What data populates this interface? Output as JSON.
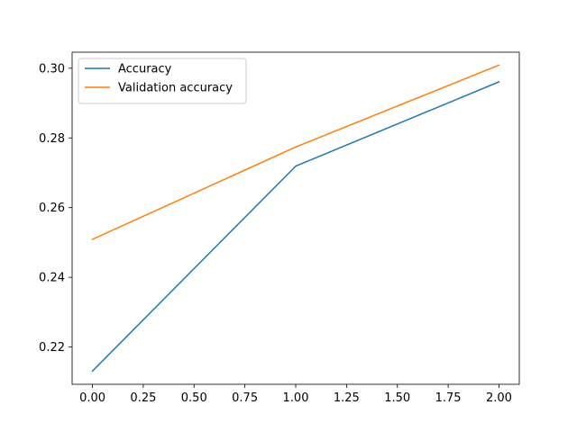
{
  "chart_data": {
    "type": "line",
    "title": "",
    "xlabel": "",
    "ylabel": "",
    "x": [
      0,
      1,
      2
    ],
    "xlim": [
      -0.1,
      2.1
    ],
    "ylim": [
      0.2093,
      0.3046
    ],
    "xticks": [
      "0.00",
      "0.25",
      "0.50",
      "0.75",
      "1.00",
      "1.25",
      "1.50",
      "1.75",
      "2.00"
    ],
    "yticks": [
      "0.22",
      "0.24",
      "0.26",
      "0.28",
      "0.30"
    ],
    "grid": false,
    "legend_position": "top-left",
    "series": [
      {
        "name": "Accuracy",
        "values": [
          0.2131,
          0.2719,
          0.2961
        ],
        "color": "#1f77b4"
      },
      {
        "name": "Validation accuracy",
        "values": [
          0.2509,
          0.2774,
          0.3009
        ],
        "color": "#ff7f0e"
      }
    ]
  }
}
